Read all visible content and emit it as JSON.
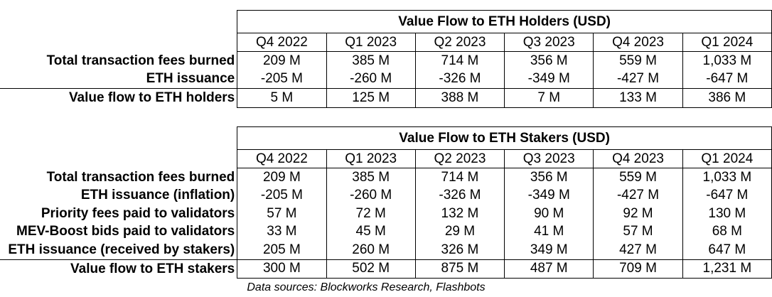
{
  "holders_table": {
    "title": "Value Flow to ETH Holders (USD)",
    "quarters": [
      "Q4 2022",
      "Q1 2023",
      "Q2 2023",
      "Q3 2023",
      "Q4 2023",
      "Q1 2024"
    ],
    "rows": [
      {
        "label": "Total transaction fees burned",
        "values": [
          "209 M",
          "385 M",
          "714 M",
          "356 M",
          "559 M",
          "1,033 M"
        ]
      },
      {
        "label": "ETH issuance",
        "values": [
          "-205 M",
          "-260 M",
          "-326 M",
          "-349 M",
          "-427 M",
          "-647 M"
        ]
      }
    ],
    "total": {
      "label": "Value flow to ETH holders",
      "values": [
        "5 M",
        "125 M",
        "388 M",
        "7 M",
        "133 M",
        "386 M"
      ]
    }
  },
  "stakers_table": {
    "title": "Value Flow to ETH Stakers (USD)",
    "quarters": [
      "Q4 2022",
      "Q1 2023",
      "Q2 2023",
      "Q3 2023",
      "Q4 2023",
      "Q1 2024"
    ],
    "rows": [
      {
        "label": "Total transaction fees burned",
        "values": [
          "209 M",
          "385 M",
          "714 M",
          "356 M",
          "559 M",
          "1,033 M"
        ]
      },
      {
        "label": "ETH issuance (inflation)",
        "values": [
          "-205 M",
          "-260 M",
          "-326 M",
          "-349 M",
          "-427 M",
          "-647 M"
        ]
      },
      {
        "label": "Priority fees paid to validators",
        "values": [
          "57 M",
          "72 M",
          "132 M",
          "90 M",
          "92 M",
          "130 M"
        ]
      },
      {
        "label": "MEV-Boost bids paid to validators",
        "values": [
          "33 M",
          "45 M",
          "29 M",
          "41 M",
          "57 M",
          "68 M"
        ]
      },
      {
        "label": "ETH issuance (received by stakers)",
        "values": [
          "205 M",
          "260 M",
          "326 M",
          "349 M",
          "427 M",
          "647 M"
        ]
      }
    ],
    "total": {
      "label": "Value flow to ETH stakers",
      "values": [
        "300 M",
        "502 M",
        "875 M",
        "487 M",
        "709 M",
        "1,231 M"
      ]
    }
  },
  "source_note": "Data sources: Blockworks Research, Flashbots"
}
